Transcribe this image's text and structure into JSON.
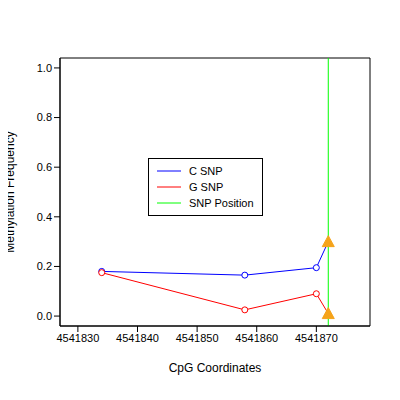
{
  "chart_data": {
    "type": "line",
    "x_label": "CpG Coordinates",
    "y_label": "Methylation Frequency",
    "xlim": [
      4541827,
      4541879
    ],
    "xticks": [
      4541830,
      4541840,
      4541850,
      4541860,
      4541870
    ],
    "ylim": [
      -0.04,
      1.04
    ],
    "yticks": [
      {
        "value": 0,
        "label": "0.0"
      },
      {
        "value": 0.2,
        "label": "0.2"
      },
      {
        "value": 0.4,
        "label": "0.4"
      },
      {
        "value": 0.6,
        "label": "0.6"
      },
      {
        "value": 0.8,
        "label": "0.8"
      },
      {
        "value": 1,
        "label": "1.0"
      }
    ],
    "legend": "inside",
    "marker": "circle",
    "series": [
      {
        "name": "C SNP",
        "color": "#0000ff",
        "x": [
          4541834,
          4541858,
          4541870
        ],
        "values": [
          0.18,
          0.165,
          0.195
        ],
        "snp_value": 0.3
      },
      {
        "name": "G SNP",
        "color": "#ff0000",
        "x": [
          4541834,
          4541858,
          4541870
        ],
        "values": [
          0.175,
          0.025,
          0.09
        ],
        "snp_value": 0.01
      }
    ],
    "snp": {
      "name": "SNP Position",
      "x": 4541872,
      "color": "#00ff00"
    }
  }
}
